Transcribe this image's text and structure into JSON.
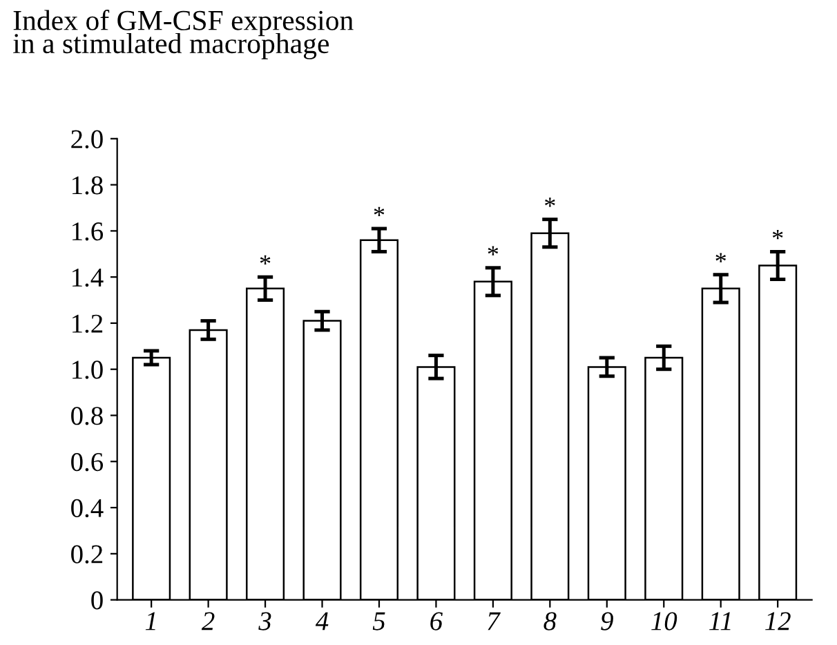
{
  "chart_data": {
    "type": "bar",
    "title": "Index of GM-CSF expression\nin a stimulated macrophage",
    "categories": [
      "1",
      "2",
      "3",
      "4",
      "5",
      "6",
      "7",
      "8",
      "9",
      "10",
      "11",
      "12"
    ],
    "values": [
      1.05,
      1.17,
      1.35,
      1.21,
      1.56,
      1.01,
      1.38,
      1.59,
      1.01,
      1.05,
      1.35,
      1.45
    ],
    "errors": [
      0.03,
      0.04,
      0.05,
      0.04,
      0.05,
      0.05,
      0.06,
      0.06,
      0.04,
      0.05,
      0.06,
      0.06
    ],
    "color": "#ffffff",
    "ylim": [
      0,
      2.0
    ],
    "yticks": [
      0,
      0.2,
      0.4,
      0.6,
      0.8,
      {
        "value": 1,
        "label": "1.0"
      },
      1.2,
      1.4,
      1.6,
      1.8,
      {
        "value": 2,
        "label": "2.0"
      }
    ],
    "annotations": [
      {
        "text": "*",
        "x": "3",
        "y": 1.4
      },
      {
        "text": "*",
        "x": "5",
        "y": 1.61
      },
      {
        "text": "*",
        "x": "7",
        "y": 1.44
      },
      {
        "text": "*",
        "x": "8",
        "y": 1.65
      },
      {
        "text": "*",
        "x": "11",
        "y": 1.41
      },
      {
        "text": "*",
        "x": "12",
        "y": 1.51
      }
    ]
  }
}
